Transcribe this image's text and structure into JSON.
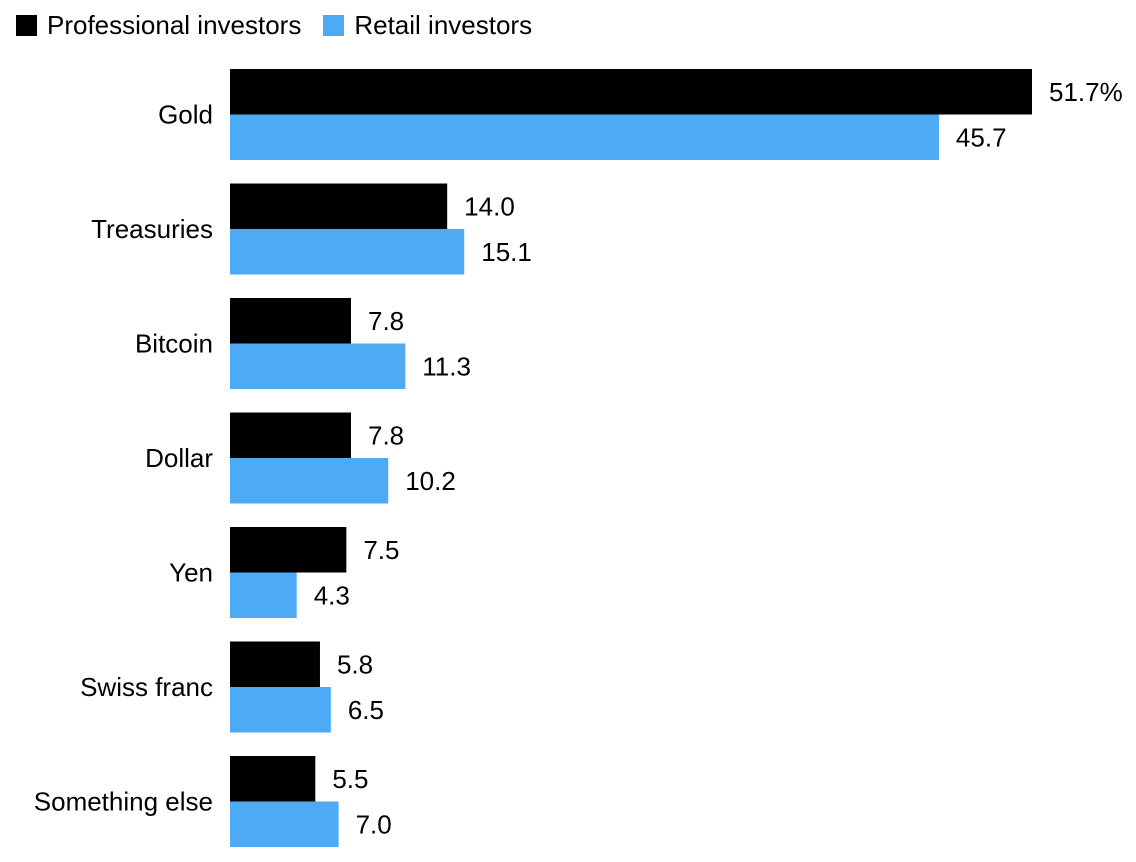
{
  "chart_data": {
    "type": "bar",
    "orientation": "horizontal",
    "categories": [
      "Gold",
      "Treasuries",
      "Bitcoin",
      "Dollar",
      "Yen",
      "Swiss franc",
      "Something else"
    ],
    "series": [
      {
        "name": "Professional investors",
        "color": "#000000",
        "values": [
          51.7,
          14.0,
          7.8,
          7.8,
          7.5,
          5.8,
          5.5
        ],
        "labels": [
          "51.7%",
          "14.0",
          "7.8",
          "7.8",
          "7.5",
          "5.8",
          "5.5"
        ]
      },
      {
        "name": "Retail investors",
        "color": "#4DAAF5",
        "values": [
          45.7,
          15.1,
          11.3,
          10.2,
          4.3,
          6.5,
          7.0
        ],
        "labels": [
          "45.7",
          "15.1",
          "11.3",
          "10.2",
          "4.3",
          "6.5",
          "7.0"
        ]
      }
    ],
    "title": "",
    "xlabel": "",
    "ylabel": "",
    "xlim": [
      0,
      51.7
    ],
    "grid": false,
    "legend_position": "top-left"
  }
}
